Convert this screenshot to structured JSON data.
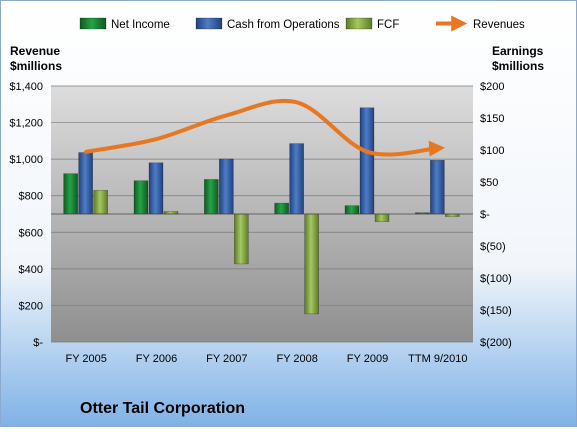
{
  "chart_data": {
    "type": "bar",
    "title": "Otter Tail Corporation",
    "categories": [
      "FY 2005",
      "FY 2006",
      "FY 2007",
      "FY 2008",
      "FY 2009",
      "TTM 9/2010"
    ],
    "left_axis": {
      "label_line1": "Revenue",
      "label_line2": "$millions",
      "ylim": [
        0,
        1400
      ],
      "ticks": [
        0,
        200,
        400,
        600,
        800,
        1000,
        1200,
        1400
      ],
      "tick_labels": [
        "$-",
        "$200",
        "$400",
        "$600",
        "$800",
        "$1,000",
        "$1,200",
        "$1,400"
      ]
    },
    "right_axis": {
      "label_line1": "Earnings",
      "label_line2": "$millions",
      "ylim": [
        -200,
        200
      ],
      "ticks": [
        -200,
        -150,
        -100,
        -50,
        0,
        50,
        100,
        150,
        200
      ],
      "tick_labels": [
        "$(200)",
        "$(150)",
        "$(100)",
        "$(50)",
        "$-",
        "$50",
        "$100",
        "$150",
        "$200"
      ]
    },
    "series": [
      {
        "name": "Net Income",
        "type": "bar",
        "axis": "right",
        "color": "#1e8c3a",
        "values": [
          63,
          52,
          54,
          17,
          13,
          2
        ]
      },
      {
        "name": "Cash from Operations",
        "type": "bar",
        "axis": "right",
        "color": "#3a64b4",
        "values": [
          96,
          80,
          86,
          110,
          166,
          84
        ]
      },
      {
        "name": "FCF",
        "type": "bar",
        "axis": "right",
        "color": "#8db04a",
        "values": [
          37,
          4,
          -78,
          -156,
          -12,
          -4
        ]
      },
      {
        "name": "Revenues",
        "type": "line",
        "axis": "left",
        "color": "#e87722",
        "values": [
          1040,
          1110,
          1240,
          1310,
          1040,
          1060
        ]
      }
    ],
    "legend_position": "top",
    "grid": true
  }
}
